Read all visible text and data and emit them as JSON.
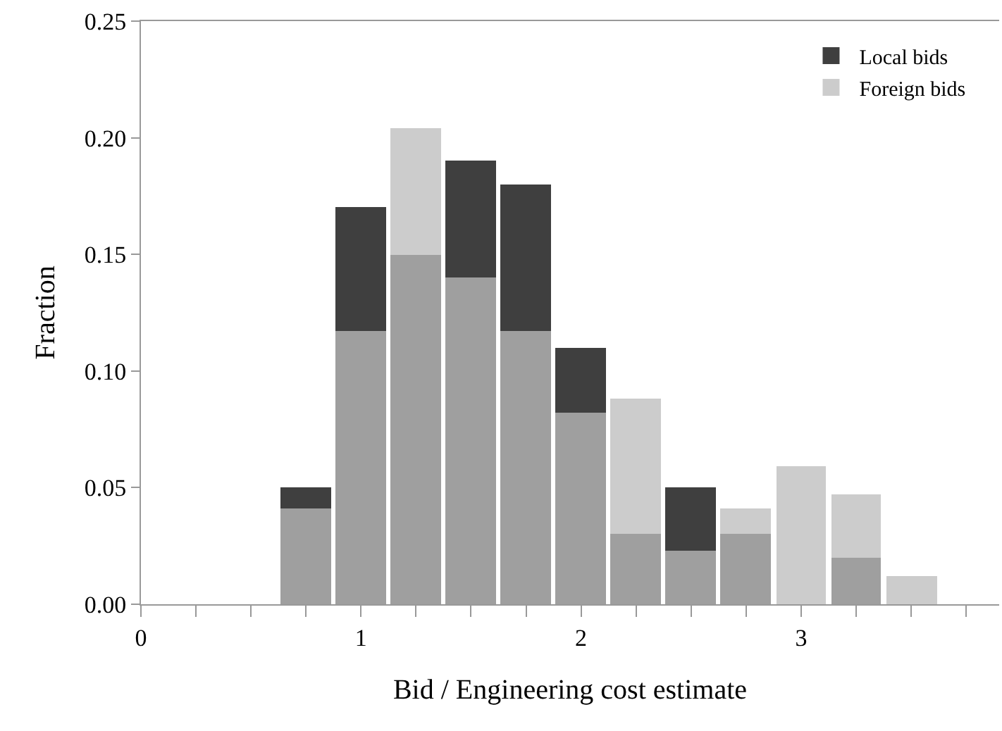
{
  "chart_data": {
    "type": "histogram",
    "xlabel": "Bid / Engineering cost estimate",
    "ylabel": "Fraction",
    "bins": [
      0.625,
      0.875,
      1.125,
      1.375,
      1.625,
      1.875,
      2.125,
      2.375,
      2.625,
      2.875,
      3.125,
      3.375,
      3.625
    ],
    "series": [
      {
        "name": "Local bids",
        "color": "#3f3f3f",
        "values": [
          0.05,
          0.17,
          0.15,
          0.19,
          0.18,
          0.11,
          0.03,
          0.05,
          0.03,
          0,
          0.02,
          0
        ]
      },
      {
        "name": "Foreign bids",
        "color": "#bdbdbd",
        "values": [
          0.041,
          0.117,
          0.204,
          0.14,
          0.117,
          0.082,
          0.088,
          0.023,
          0.041,
          0.059,
          0.047,
          0.012
        ]
      }
    ],
    "xlim": [
      0,
      3.9
    ],
    "xticks": [
      0,
      {
        "value": 0.25,
        "label": null
      },
      {
        "value": 0.5,
        "label": null
      },
      {
        "value": 0.75,
        "label": null
      },
      1,
      {
        "value": 1.25,
        "label": null
      },
      {
        "value": 1.5,
        "label": null
      },
      {
        "value": 1.75,
        "label": null
      },
      2,
      {
        "value": 2.25,
        "label": null
      },
      {
        "value": 2.5,
        "label": null
      },
      {
        "value": 2.75,
        "label": null
      },
      3,
      {
        "value": 3.25,
        "label": null
      },
      {
        "value": 3.5,
        "label": null
      },
      {
        "value": 3.75,
        "label": null
      }
    ],
    "ylim": [
      0,
      0.25
    ],
    "yticks": [
      {
        "value": 0,
        "label": "0.00"
      },
      {
        "value": 0.05,
        "label": "0.05"
      },
      {
        "value": 0.1,
        "label": "0.10"
      },
      {
        "value": 0.15,
        "label": "0.15"
      },
      {
        "value": 0.2,
        "label": "0.20"
      },
      {
        "value": 0.25,
        "label": "0.25"
      }
    ],
    "grid": false,
    "legend": "top right"
  }
}
